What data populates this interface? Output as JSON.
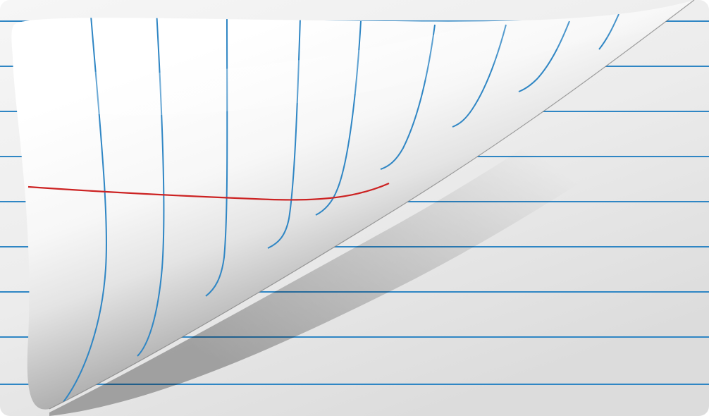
{
  "image": {
    "subject": "page-curl",
    "colors": {
      "background": "#ffffff",
      "sheet_light": "#f4f4f4",
      "sheet_dark": "#d2d2d2",
      "curl_light": "#ffffff",
      "curl_mid": "#e9e9e9",
      "curl_dark": "#8e8e8e",
      "rule_line": "#2f86c4",
      "margin_line": "#cc2222"
    },
    "icons": []
  }
}
